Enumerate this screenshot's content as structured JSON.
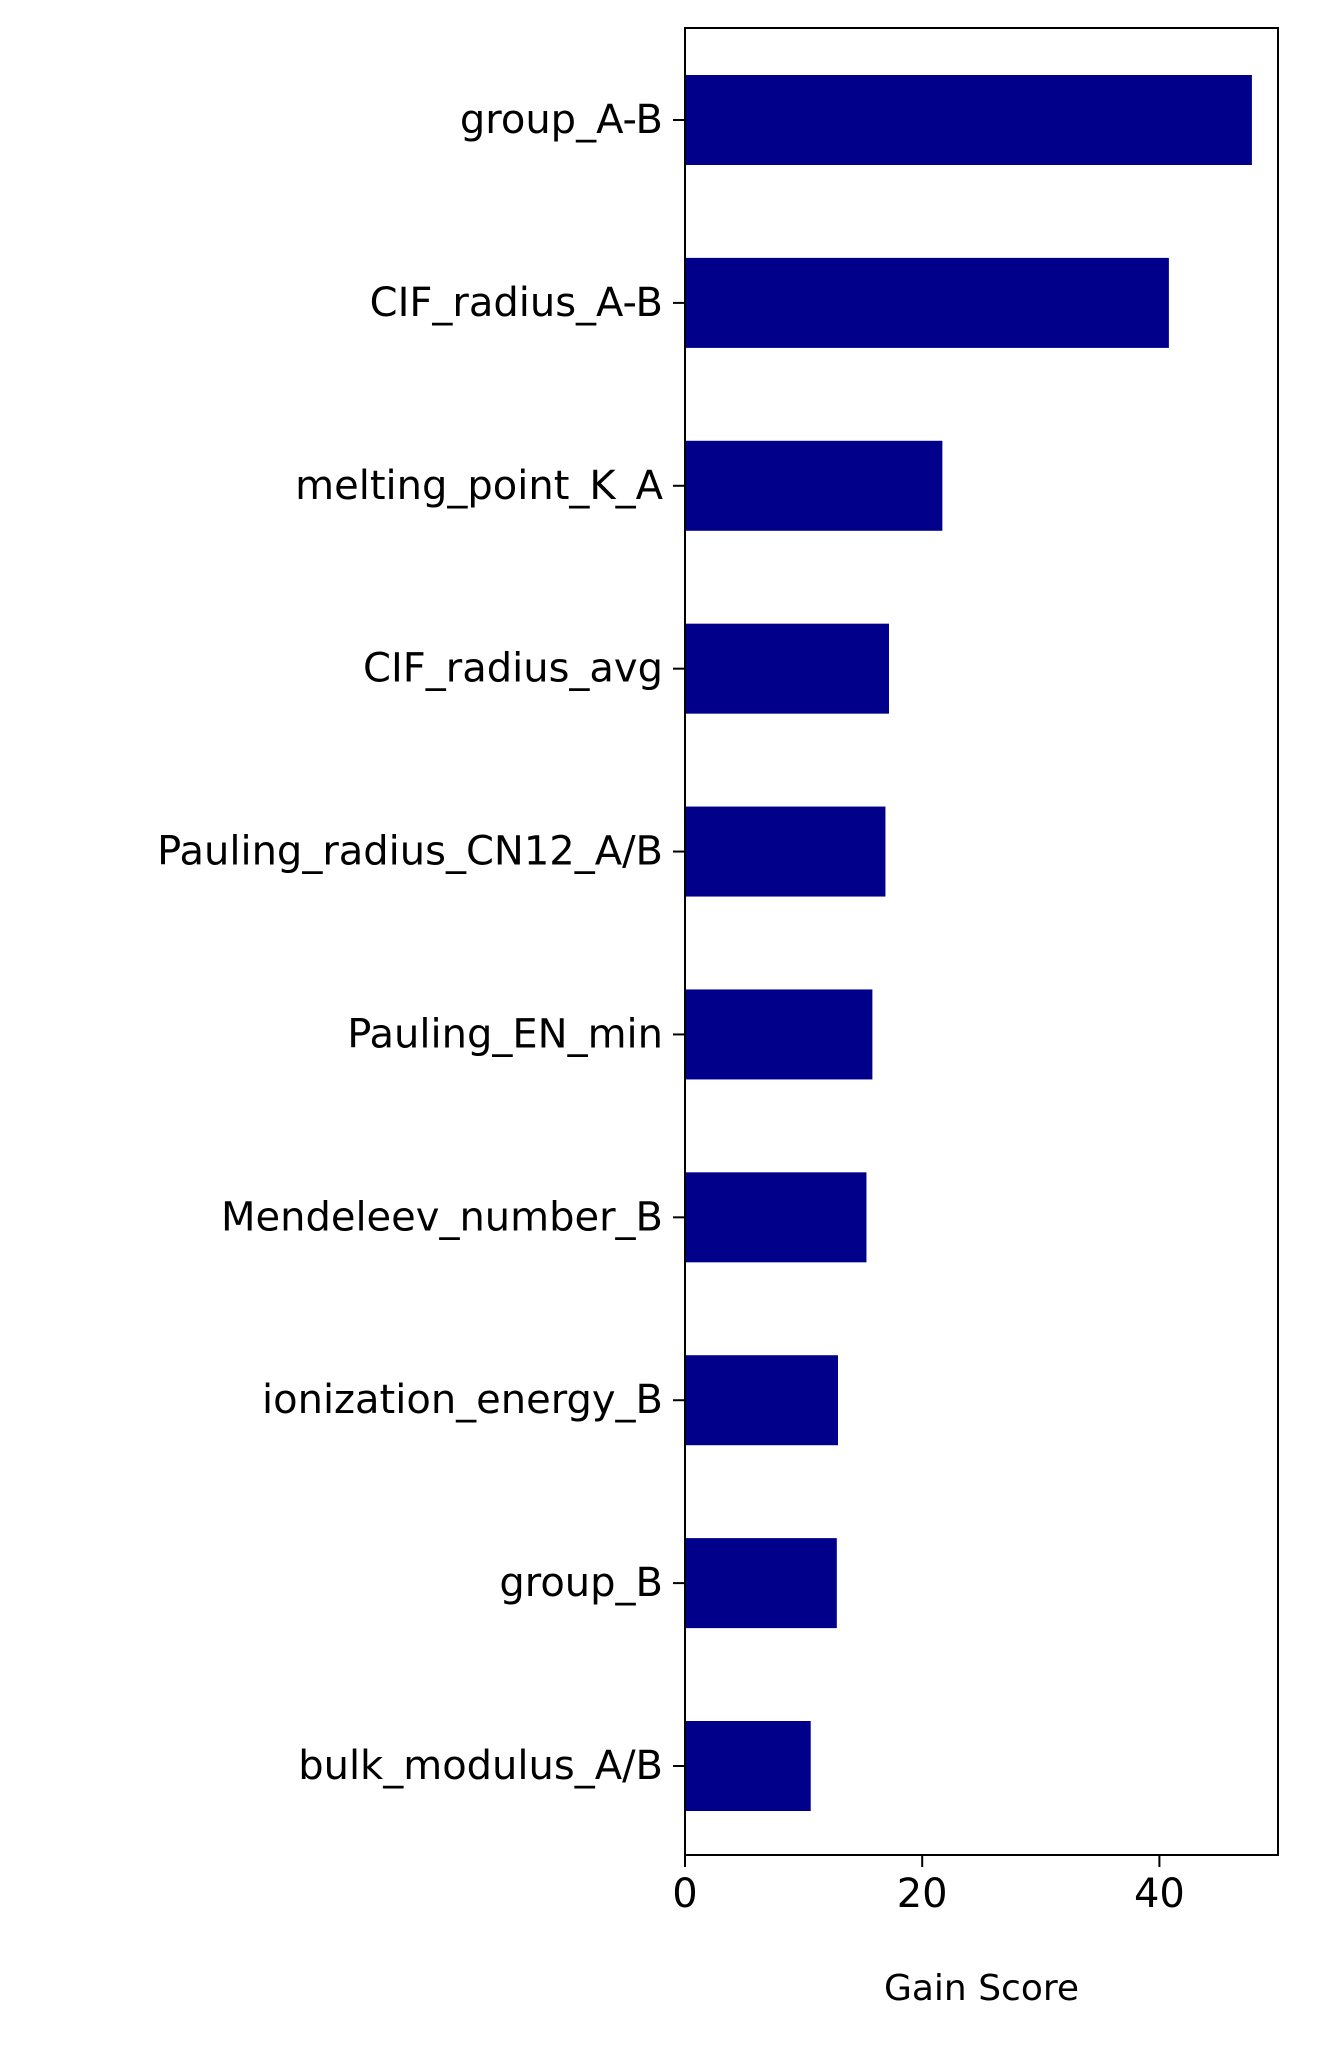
{
  "chart_data": {
    "type": "bar",
    "orientation": "horizontal",
    "categories": [
      "group_A-B",
      "CIF_radius_A-B",
      "melting_point_K_A",
      "CIF_radius_avg",
      "Pauling_radius_CN12_A/B",
      "Pauling_EN_min",
      "Mendeleev_number_B",
      "ionization_energy_B",
      "group_B",
      "bulk_modulus_A/B"
    ],
    "values": [
      47.8,
      40.8,
      21.7,
      17.2,
      16.9,
      15.8,
      15.3,
      12.9,
      12.8,
      10.6
    ],
    "xlabel": "Gain Score",
    "ylabel": "",
    "title": "",
    "xlim": [
      0,
      50
    ],
    "xticks": [
      0,
      20,
      40
    ],
    "grid": false,
    "bar_color": "#00008b"
  }
}
